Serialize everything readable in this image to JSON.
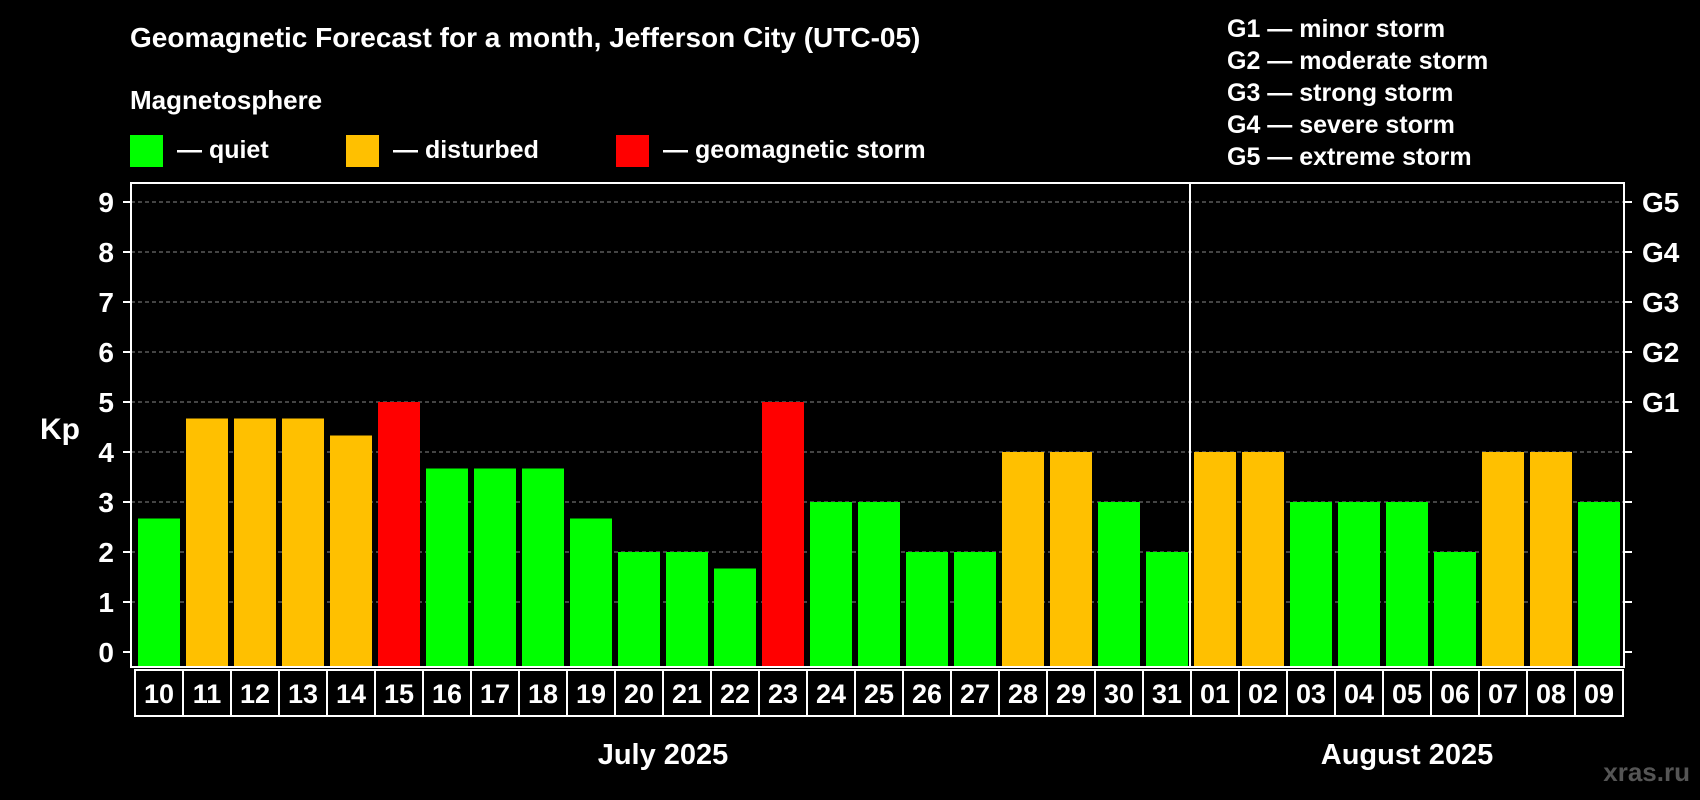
{
  "colors": {
    "background": "#000000",
    "quiet": "#00ff00",
    "disturbed": "#ffc000",
    "storm": "#ff0000",
    "text": "#ffffff",
    "grid": "#888888",
    "watermark": "#555555"
  },
  "header": {
    "title": "Geomagnetic Forecast for a month, Jefferson City (UTC-05)",
    "legend_heading": "Magnetosphere",
    "legend": [
      {
        "key": "quiet",
        "label": "— quiet"
      },
      {
        "key": "disturbed",
        "label": "— disturbed"
      },
      {
        "key": "storm",
        "label": "— geomagnetic storm"
      }
    ],
    "g_scale": [
      "G1 — minor storm",
      "G2 — moderate storm",
      "G3 — strong storm",
      "G4 — severe storm",
      "G5 — extreme storm"
    ]
  },
  "watermark": "xras.ru",
  "chart_data": {
    "type": "bar",
    "title": "Geomagnetic Forecast for a month, Jefferson City (UTC-05)",
    "ylabel": "Kp",
    "xlabel": "",
    "ylim": [
      0,
      9
    ],
    "yticks": [
      0,
      1,
      2,
      3,
      4,
      5,
      6,
      7,
      8,
      9
    ],
    "grid": true,
    "right_axis_labels": [
      {
        "kp": 5,
        "label": "G1"
      },
      {
        "kp": 6,
        "label": "G2"
      },
      {
        "kp": 7,
        "label": "G3"
      },
      {
        "kp": 8,
        "label": "G4"
      },
      {
        "kp": 9,
        "label": "G5"
      }
    ],
    "categories": [
      "10",
      "11",
      "12",
      "13",
      "14",
      "15",
      "16",
      "17",
      "18",
      "19",
      "20",
      "21",
      "22",
      "23",
      "24",
      "25",
      "26",
      "27",
      "28",
      "29",
      "30",
      "31",
      "01",
      "02",
      "03",
      "04",
      "05",
      "06",
      "07",
      "08",
      "09"
    ],
    "values": [
      2.67,
      4.67,
      4.67,
      4.67,
      4.33,
      5,
      3.67,
      3.67,
      3.67,
      2.67,
      2,
      2,
      1.67,
      5,
      3,
      3,
      2,
      2,
      4,
      4,
      3,
      2,
      4,
      4,
      3,
      3,
      3,
      2,
      4,
      4,
      3
    ],
    "status": [
      "quiet",
      "disturbed",
      "disturbed",
      "disturbed",
      "disturbed",
      "storm",
      "quiet",
      "quiet",
      "quiet",
      "quiet",
      "quiet",
      "quiet",
      "quiet",
      "storm",
      "quiet",
      "quiet",
      "quiet",
      "quiet",
      "disturbed",
      "disturbed",
      "quiet",
      "quiet",
      "disturbed",
      "disturbed",
      "quiet",
      "quiet",
      "quiet",
      "quiet",
      "disturbed",
      "disturbed",
      "quiet"
    ],
    "months": [
      {
        "label": "July 2025",
        "start_index": 0,
        "end_index": 21
      },
      {
        "label": "August 2025",
        "start_index": 22,
        "end_index": 30
      }
    ]
  }
}
